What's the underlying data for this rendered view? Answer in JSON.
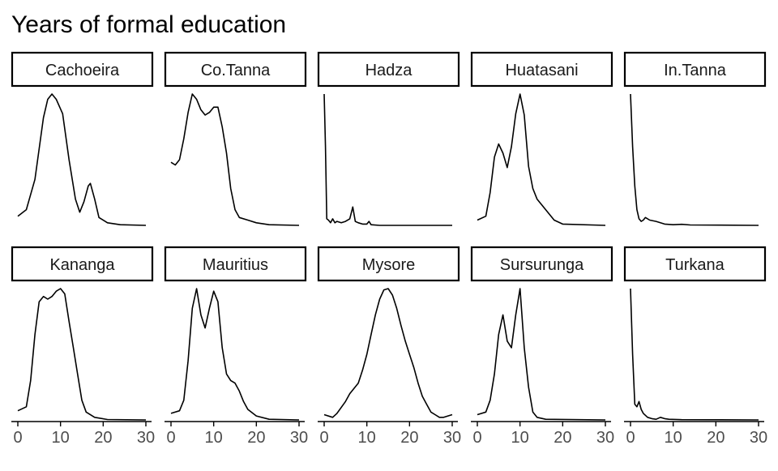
{
  "chart_data": {
    "type": "area",
    "title": "Years of formal education",
    "xlabel": "",
    "ylabel": "",
    "xlim": [
      0,
      30
    ],
    "x_ticks": [
      0,
      10,
      20,
      30
    ],
    "x_tick_labels": [
      "0",
      "10",
      "20",
      "30"
    ],
    "grid": false,
    "legend": "none",
    "line_color": "#000000",
    "panels": [
      {
        "name": "Cachoeira",
        "points": [
          [
            0,
            0.07
          ],
          [
            2,
            0.12
          ],
          [
            4,
            0.35
          ],
          [
            6,
            0.82
          ],
          [
            7,
            0.96
          ],
          [
            8,
            1.0
          ],
          [
            9,
            0.96
          ],
          [
            10.5,
            0.85
          ],
          [
            12,
            0.5
          ],
          [
            13.5,
            0.2
          ],
          [
            14.5,
            0.1
          ],
          [
            15.5,
            0.18
          ],
          [
            16.5,
            0.3
          ],
          [
            17,
            0.32
          ],
          [
            18,
            0.2
          ],
          [
            19,
            0.06
          ],
          [
            21,
            0.02
          ],
          [
            24,
            0.005
          ],
          [
            30,
            0.0
          ]
        ]
      },
      {
        "name": "Co.Tanna",
        "points": [
          [
            0,
            0.48
          ],
          [
            1,
            0.46
          ],
          [
            2,
            0.5
          ],
          [
            3,
            0.66
          ],
          [
            4,
            0.86
          ],
          [
            5,
            1.0
          ],
          [
            6,
            0.96
          ],
          [
            7,
            0.88
          ],
          [
            8,
            0.84
          ],
          [
            9,
            0.86
          ],
          [
            10,
            0.9
          ],
          [
            11,
            0.9
          ],
          [
            12,
            0.75
          ],
          [
            13,
            0.55
          ],
          [
            14,
            0.28
          ],
          [
            15,
            0.12
          ],
          [
            16,
            0.06
          ],
          [
            18,
            0.04
          ],
          [
            20,
            0.02
          ],
          [
            23,
            0.005
          ],
          [
            30,
            0.0
          ]
        ]
      },
      {
        "name": "Hadza",
        "points": [
          [
            0,
            1.0
          ],
          [
            0.3,
            0.6
          ],
          [
            0.6,
            0.05
          ],
          [
            1,
            0.04
          ],
          [
            1.5,
            0.02
          ],
          [
            2,
            0.05
          ],
          [
            2.5,
            0.02
          ],
          [
            3,
            0.03
          ],
          [
            4,
            0.02
          ],
          [
            5,
            0.03
          ],
          [
            6,
            0.05
          ],
          [
            6.7,
            0.14
          ],
          [
            7.3,
            0.03
          ],
          [
            8,
            0.02
          ],
          [
            9,
            0.01
          ],
          [
            10,
            0.01
          ],
          [
            10.5,
            0.03
          ],
          [
            11,
            0.005
          ],
          [
            13,
            0.0
          ],
          [
            30,
            0.0
          ]
        ]
      },
      {
        "name": "Huatasani",
        "points": [
          [
            0,
            0.04
          ],
          [
            2,
            0.07
          ],
          [
            3,
            0.25
          ],
          [
            4,
            0.52
          ],
          [
            5,
            0.62
          ],
          [
            6,
            0.55
          ],
          [
            7,
            0.44
          ],
          [
            8,
            0.6
          ],
          [
            9,
            0.85
          ],
          [
            10,
            1.0
          ],
          [
            11,
            0.84
          ],
          [
            12,
            0.45
          ],
          [
            13,
            0.28
          ],
          [
            14,
            0.2
          ],
          [
            16,
            0.12
          ],
          [
            18,
            0.04
          ],
          [
            20,
            0.01
          ],
          [
            30,
            0.0
          ]
        ]
      },
      {
        "name": "In.Tanna",
        "points": [
          [
            0,
            1.0
          ],
          [
            0.5,
            0.6
          ],
          [
            1,
            0.3
          ],
          [
            1.5,
            0.12
          ],
          [
            2,
            0.05
          ],
          [
            2.5,
            0.03
          ],
          [
            3,
            0.04
          ],
          [
            3.5,
            0.06
          ],
          [
            4.5,
            0.04
          ],
          [
            6,
            0.03
          ],
          [
            8,
            0.01
          ],
          [
            10,
            0.005
          ],
          [
            12,
            0.008
          ],
          [
            14,
            0.003
          ],
          [
            30,
            0.0
          ]
        ]
      },
      {
        "name": "Kananga",
        "points": [
          [
            0,
            0.07
          ],
          [
            2,
            0.1
          ],
          [
            3,
            0.3
          ],
          [
            4,
            0.65
          ],
          [
            5,
            0.9
          ],
          [
            6,
            0.94
          ],
          [
            7,
            0.92
          ],
          [
            8,
            0.94
          ],
          [
            9,
            0.98
          ],
          [
            10,
            1.0
          ],
          [
            11,
            0.96
          ],
          [
            12,
            0.75
          ],
          [
            13,
            0.55
          ],
          [
            14,
            0.35
          ],
          [
            15,
            0.15
          ],
          [
            16,
            0.06
          ],
          [
            18,
            0.02
          ],
          [
            21,
            0.003
          ],
          [
            30,
            0.0
          ]
        ]
      },
      {
        "name": "Mauritius",
        "points": [
          [
            0,
            0.05
          ],
          [
            2,
            0.07
          ],
          [
            3,
            0.15
          ],
          [
            4,
            0.45
          ],
          [
            5,
            0.85
          ],
          [
            6,
            1.0
          ],
          [
            7,
            0.8
          ],
          [
            8,
            0.7
          ],
          [
            9,
            0.85
          ],
          [
            10,
            0.98
          ],
          [
            11,
            0.9
          ],
          [
            12,
            0.55
          ],
          [
            13,
            0.35
          ],
          [
            14,
            0.3
          ],
          [
            15,
            0.28
          ],
          [
            16,
            0.22
          ],
          [
            17,
            0.14
          ],
          [
            18,
            0.08
          ],
          [
            20,
            0.03
          ],
          [
            23,
            0.005
          ],
          [
            30,
            0.0
          ]
        ]
      },
      {
        "name": "Mysore",
        "points": [
          [
            0,
            0.04
          ],
          [
            2,
            0.02
          ],
          [
            3,
            0.05
          ],
          [
            5,
            0.14
          ],
          [
            6,
            0.2
          ],
          [
            8,
            0.28
          ],
          [
            9,
            0.38
          ],
          [
            10,
            0.5
          ],
          [
            11,
            0.65
          ],
          [
            12,
            0.8
          ],
          [
            13,
            0.92
          ],
          [
            14,
            0.99
          ],
          [
            15,
            1.0
          ],
          [
            16,
            0.95
          ],
          [
            17,
            0.85
          ],
          [
            18,
            0.72
          ],
          [
            19,
            0.6
          ],
          [
            20,
            0.5
          ],
          [
            21,
            0.4
          ],
          [
            22,
            0.28
          ],
          [
            23,
            0.18
          ],
          [
            24,
            0.12
          ],
          [
            25,
            0.06
          ],
          [
            26,
            0.04
          ],
          [
            27,
            0.02
          ],
          [
            28,
            0.02
          ],
          [
            29,
            0.03
          ],
          [
            30,
            0.04
          ]
        ]
      },
      {
        "name": "Sursurunga",
        "points": [
          [
            0,
            0.04
          ],
          [
            2,
            0.06
          ],
          [
            3,
            0.15
          ],
          [
            4,
            0.35
          ],
          [
            5,
            0.65
          ],
          [
            6,
            0.8
          ],
          [
            7,
            0.6
          ],
          [
            8,
            0.55
          ],
          [
            9,
            0.8
          ],
          [
            10,
            1.0
          ],
          [
            11,
            0.55
          ],
          [
            12,
            0.25
          ],
          [
            13,
            0.06
          ],
          [
            14,
            0.02
          ],
          [
            16,
            0.005
          ],
          [
            30,
            0.0
          ]
        ]
      },
      {
        "name": "Turkana",
        "points": [
          [
            0,
            1.0
          ],
          [
            0.5,
            0.5
          ],
          [
            1,
            0.12
          ],
          [
            1.5,
            0.1
          ],
          [
            2,
            0.14
          ],
          [
            2.5,
            0.08
          ],
          [
            3,
            0.05
          ],
          [
            4,
            0.02
          ],
          [
            5,
            0.01
          ],
          [
            6,
            0.005
          ],
          [
            7,
            0.02
          ],
          [
            8,
            0.01
          ],
          [
            9,
            0.005
          ],
          [
            12,
            0.002
          ],
          [
            30,
            0.0
          ]
        ]
      }
    ]
  }
}
